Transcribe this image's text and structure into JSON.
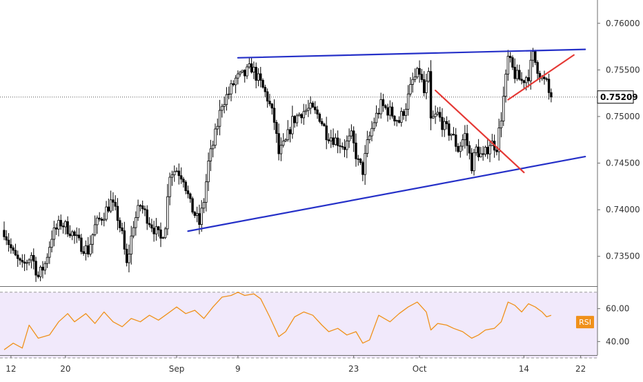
{
  "chart_data": [
    {
      "type": "candlestick",
      "title": "",
      "ylabel": "",
      "ylim": [
        0.7318,
        0.7625
      ],
      "y_ticks": [
        0.735,
        0.74,
        0.745,
        0.75,
        0.755,
        0.76
      ],
      "y_tick_labels": [
        "0.73500",
        "0.74000",
        "0.74500",
        "0.75000",
        "0.75500",
        "0.76000"
      ],
      "x_ticks": [
        {
          "label": "12",
          "index": 3
        },
        {
          "label": "20",
          "index": 27
        },
        {
          "label": "Sep",
          "index": 76
        },
        {
          "label": "9",
          "index": 103
        },
        {
          "label": "23",
          "index": 154
        },
        {
          "label": "Oct",
          "index": 183
        },
        {
          "label": "14",
          "index": 229
        },
        {
          "label": "22",
          "index": 254
        }
      ],
      "last_price": {
        "value": 0.75209,
        "label": "0.75209"
      },
      "price_path": [
        [
          0,
          0.7378
        ],
        [
          4,
          0.7352
        ],
        [
          8,
          0.7338
        ],
        [
          12,
          0.7352
        ],
        [
          15,
          0.7328
        ],
        [
          18,
          0.7342
        ],
        [
          21,
          0.7372
        ],
        [
          25,
          0.7386
        ],
        [
          29,
          0.7378
        ],
        [
          33,
          0.7364
        ],
        [
          37,
          0.7356
        ],
        [
          40,
          0.7382
        ],
        [
          44,
          0.7396
        ],
        [
          47,
          0.7408
        ],
        [
          50,
          0.7392
        ],
        [
          52,
          0.7372
        ],
        [
          54,
          0.734
        ],
        [
          57,
          0.7385
        ],
        [
          60,
          0.7405
        ],
        [
          63,
          0.7392
        ],
        [
          66,
          0.738
        ],
        [
          69,
          0.7368
        ],
        [
          71,
          0.7385
        ],
        [
          73,
          0.744
        ],
        [
          76,
          0.7443
        ],
        [
          79,
          0.7435
        ],
        [
          82,
          0.7405
        ],
        [
          86,
          0.7385
        ],
        [
          88,
          0.741
        ],
        [
          90,
          0.745
        ],
        [
          93,
          0.748
        ],
        [
          96,
          0.7515
        ],
        [
          99,
          0.7525
        ],
        [
          102,
          0.754
        ],
        [
          106,
          0.7545
        ],
        [
          109,
          0.7553
        ],
        [
          113,
          0.7535
        ],
        [
          116,
          0.752
        ],
        [
          119,
          0.7495
        ],
        [
          121,
          0.746
        ],
        [
          124,
          0.7472
        ],
        [
          127,
          0.7495
        ],
        [
          131,
          0.7505
        ],
        [
          135,
          0.7508
        ],
        [
          139,
          0.75
        ],
        [
          142,
          0.7482
        ],
        [
          146,
          0.7475
        ],
        [
          150,
          0.7468
        ],
        [
          153,
          0.7478
        ],
        [
          156,
          0.745
        ],
        [
          158,
          0.7442
        ],
        [
          160,
          0.747
        ],
        [
          163,
          0.7495
        ],
        [
          166,
          0.7512
        ],
        [
          170,
          0.7505
        ],
        [
          174,
          0.7495
        ],
        [
          177,
          0.7512
        ],
        [
          180,
          0.7538
        ],
        [
          183,
          0.7548
        ],
        [
          185,
          0.7525
        ],
        [
          187,
          0.7542
        ],
        [
          188,
          0.7495
        ],
        [
          191,
          0.7502
        ],
        [
          194,
          0.7488
        ],
        [
          197,
          0.7482
        ],
        [
          200,
          0.7465
        ],
        [
          203,
          0.748
        ],
        [
          206,
          0.7448
        ],
        [
          208,
          0.7465
        ],
        [
          211,
          0.7455
        ],
        [
          214,
          0.7472
        ],
        [
          217,
          0.7468
        ],
        [
          219,
          0.75
        ],
        [
          221,
          0.754
        ],
        [
          222,
          0.7562
        ],
        [
          225,
          0.7545
        ],
        [
          228,
          0.7538
        ],
        [
          231,
          0.7545
        ],
        [
          233,
          0.7565
        ],
        [
          235,
          0.7552
        ],
        [
          237,
          0.754
        ],
        [
          239,
          0.7535
        ],
        [
          240,
          0.7525
        ],
        [
          241,
          0.75209
        ]
      ],
      "trendlines": [
        {
          "name": "upper-channel",
          "color": "#2530c8",
          "points": [
            [
              103,
              0.7563
            ],
            [
              256,
              0.7572
            ]
          ]
        },
        {
          "name": "lower-channel",
          "color": "#2530c8",
          "points": [
            [
              81,
              0.7377
            ],
            [
              256,
              0.7457
            ]
          ]
        },
        {
          "name": "falling-channel",
          "color": "#e53935",
          "points": [
            [
              190,
              0.7528
            ],
            [
              229,
              0.744
            ]
          ]
        },
        {
          "name": "rising-channel",
          "color": "#e53935",
          "points": [
            [
              222,
              0.7518
            ],
            [
              251,
              0.7566
            ]
          ]
        }
      ]
    },
    {
      "type": "line",
      "name": "RSI",
      "label": "RSI",
      "ylim": [
        33,
        72
      ],
      "y_ticks": [
        40.0,
        60.0
      ],
      "y_tick_labels": [
        "40.00",
        "60.00"
      ],
      "band": [
        30,
        70
      ],
      "color": "#f0911a",
      "path": [
        [
          0,
          35
        ],
        [
          4,
          39
        ],
        [
          8,
          36
        ],
        [
          11,
          50
        ],
        [
          15,
          42
        ],
        [
          20,
          44
        ],
        [
          24,
          52
        ],
        [
          28,
          57
        ],
        [
          31,
          52
        ],
        [
          36,
          57
        ],
        [
          40,
          51
        ],
        [
          44,
          58
        ],
        [
          48,
          52
        ],
        [
          52,
          49
        ],
        [
          56,
          54
        ],
        [
          60,
          52
        ],
        [
          64,
          56
        ],
        [
          68,
          53
        ],
        [
          72,
          57
        ],
        [
          76,
          61
        ],
        [
          80,
          57
        ],
        [
          84,
          59
        ],
        [
          88,
          54
        ],
        [
          92,
          61
        ],
        [
          96,
          67
        ],
        [
          100,
          68
        ],
        [
          103,
          70
        ],
        [
          106,
          68
        ],
        [
          110,
          69
        ],
        [
          113,
          66
        ],
        [
          117,
          55
        ],
        [
          121,
          43
        ],
        [
          124,
          46
        ],
        [
          128,
          55
        ],
        [
          132,
          58
        ],
        [
          136,
          56
        ],
        [
          140,
          50
        ],
        [
          143,
          46
        ],
        [
          147,
          48
        ],
        [
          151,
          44
        ],
        [
          155,
          46
        ],
        [
          158,
          39
        ],
        [
          161,
          41
        ],
        [
          165,
          56
        ],
        [
          170,
          52
        ],
        [
          174,
          57
        ],
        [
          178,
          61
        ],
        [
          182,
          64
        ],
        [
          186,
          58
        ],
        [
          188,
          47
        ],
        [
          191,
          51
        ],
        [
          195,
          50
        ],
        [
          198,
          48
        ],
        [
          202,
          46
        ],
        [
          206,
          42
        ],
        [
          209,
          44
        ],
        [
          212,
          47
        ],
        [
          216,
          48
        ],
        [
          219,
          52
        ],
        [
          222,
          64
        ],
        [
          225,
          62
        ],
        [
          228,
          58
        ],
        [
          231,
          63
        ],
        [
          234,
          61
        ],
        [
          237,
          58
        ],
        [
          239,
          55
        ],
        [
          241,
          56
        ]
      ]
    }
  ]
}
